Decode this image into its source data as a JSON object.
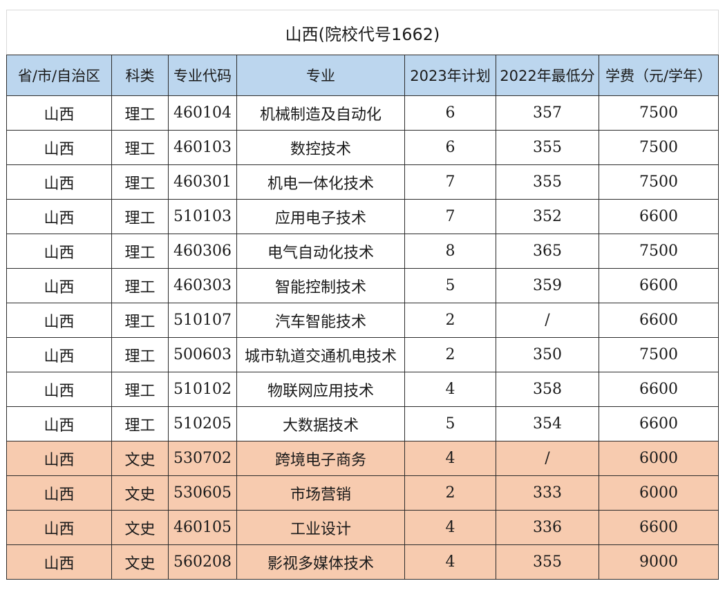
{
  "title": "山西(院校代号1662)",
  "headers": [
    "省/市/自治区",
    "科类",
    "专业代码",
    "专业",
    "2023年计划",
    "2022年最低分",
    "学费（元/学年）"
  ],
  "colors": {
    "header_bg": "#bcd6ee",
    "science_row_bg": "#ffffff",
    "arts_row_bg": "#f7cbaf"
  },
  "rows": [
    {
      "province": "山西",
      "category": "理工",
      "code": "460104",
      "major": "机械制造及自动化",
      "plan_2023": "6",
      "min_2022": "357",
      "tuition": "7500",
      "group": "science"
    },
    {
      "province": "山西",
      "category": "理工",
      "code": "460103",
      "major": "数控技术",
      "plan_2023": "6",
      "min_2022": "355",
      "tuition": "7500",
      "group": "science"
    },
    {
      "province": "山西",
      "category": "理工",
      "code": "460301",
      "major": "机电一体化技术",
      "plan_2023": "7",
      "min_2022": "355",
      "tuition": "7500",
      "group": "science"
    },
    {
      "province": "山西",
      "category": "理工",
      "code": "510103",
      "major": "应用电子技术",
      "plan_2023": "7",
      "min_2022": "352",
      "tuition": "6600",
      "group": "science"
    },
    {
      "province": "山西",
      "category": "理工",
      "code": "460306",
      "major": "电气自动化技术",
      "plan_2023": "8",
      "min_2022": "365",
      "tuition": "7500",
      "group": "science"
    },
    {
      "province": "山西",
      "category": "理工",
      "code": "460303",
      "major": "智能控制技术",
      "plan_2023": "5",
      "min_2022": "359",
      "tuition": "6600",
      "group": "science"
    },
    {
      "province": "山西",
      "category": "理工",
      "code": "510107",
      "major": "汽车智能技术",
      "plan_2023": "2",
      "min_2022": "/",
      "tuition": "6600",
      "group": "science"
    },
    {
      "province": "山西",
      "category": "理工",
      "code": "500603",
      "major": "城市轨道交通机电技术",
      "plan_2023": "2",
      "min_2022": "350",
      "tuition": "7500",
      "group": "science"
    },
    {
      "province": "山西",
      "category": "理工",
      "code": "510102",
      "major": "物联网应用技术",
      "plan_2023": "4",
      "min_2022": "358",
      "tuition": "6600",
      "group": "science"
    },
    {
      "province": "山西",
      "category": "理工",
      "code": "510205",
      "major": "大数据技术",
      "plan_2023": "5",
      "min_2022": "354",
      "tuition": "6600",
      "group": "science"
    },
    {
      "province": "山西",
      "category": "文史",
      "code": "530702",
      "major": "跨境电子商务",
      "plan_2023": "4",
      "min_2022": "/",
      "tuition": "6000",
      "group": "arts"
    },
    {
      "province": "山西",
      "category": "文史",
      "code": "530605",
      "major": "市场营销",
      "plan_2023": "2",
      "min_2022": "333",
      "tuition": "6000",
      "group": "arts"
    },
    {
      "province": "山西",
      "category": "文史",
      "code": "460105",
      "major": "工业设计",
      "plan_2023": "4",
      "min_2022": "336",
      "tuition": "6600",
      "group": "arts"
    },
    {
      "province": "山西",
      "category": "文史",
      "code": "560208",
      "major": "影视多媒体技术",
      "plan_2023": "4",
      "min_2022": "355",
      "tuition": "9000",
      "group": "arts"
    }
  ]
}
